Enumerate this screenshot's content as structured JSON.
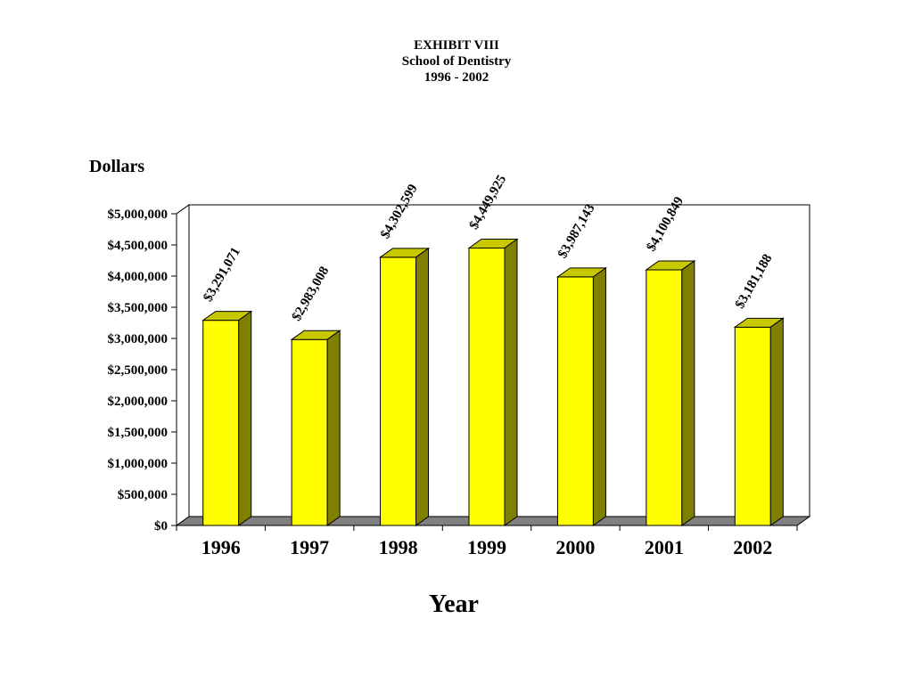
{
  "chart_data": {
    "type": "bar",
    "title": "EXHIBIT VIII",
    "subtitle": "School of Dentistry",
    "period": "1996 - 2002",
    "xlabel": "Year",
    "ylabel": "Dollars",
    "categories": [
      "1996",
      "1997",
      "1998",
      "1999",
      "2000",
      "2001",
      "2002"
    ],
    "values": [
      3291071,
      2983008,
      4302599,
      4449925,
      3987143,
      4100849,
      3181188
    ],
    "value_labels": [
      "$3,291,071",
      "$2,983,008",
      "$4,302,599",
      "$4,449,925",
      "$3,987,143",
      "$4,100,849",
      "$3,181,188"
    ],
    "ylim": [
      0,
      5000000
    ],
    "yticks": [
      0,
      500000,
      1000000,
      1500000,
      2000000,
      2500000,
      3000000,
      3500000,
      4000000,
      4500000,
      5000000
    ],
    "ytick_labels": [
      "$0",
      "$500,000",
      "$1,000,000",
      "$1,500,000",
      "$2,000,000",
      "$2,500,000",
      "$3,000,000",
      "$3,500,000",
      "$4,000,000",
      "$4,500,000",
      "$5,000,000"
    ],
    "grid": true,
    "legend": "none",
    "colors": {
      "bar_front": "#ffff00",
      "bar_top": "#c8c800",
      "bar_side": "#808000",
      "floor": "#808080"
    }
  }
}
